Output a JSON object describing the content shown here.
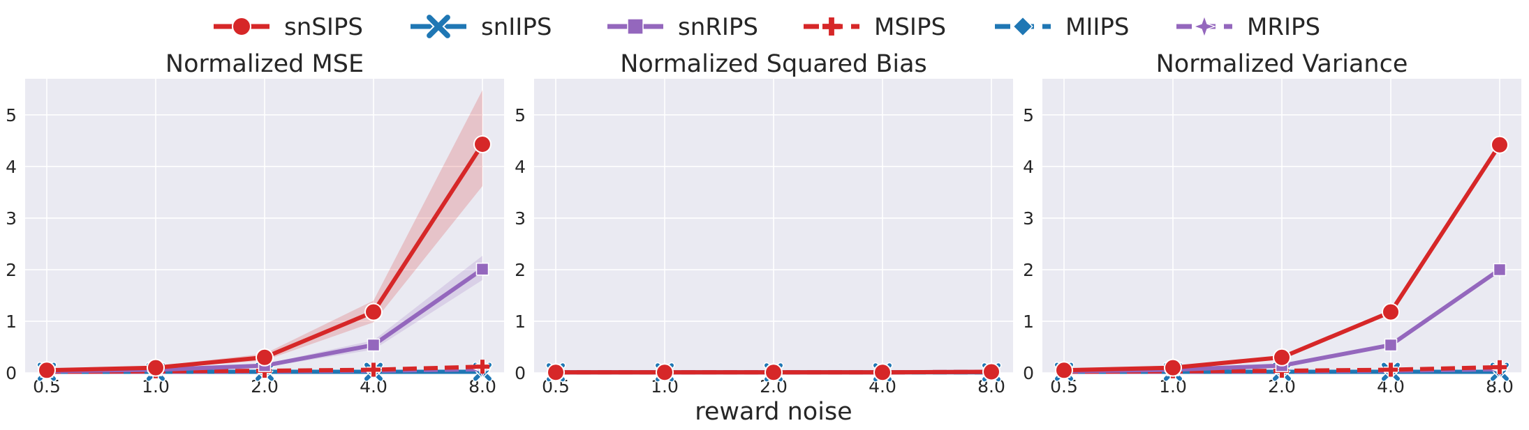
{
  "figure": {
    "xlabel": "reward noise"
  },
  "legend": {
    "placement": "top-center",
    "entries": [
      {
        "name": "snSIPS",
        "color": "#d62728",
        "marker": "circle",
        "dashed": false
      },
      {
        "name": "snIIPS",
        "color": "#1f77b4",
        "marker": "x",
        "dashed": false
      },
      {
        "name": "snRIPS",
        "color": "#9467bd",
        "marker": "square",
        "dashed": false
      },
      {
        "name": "MSIPS",
        "color": "#d62728",
        "marker": "plus",
        "dashed": true
      },
      {
        "name": "MIIPS",
        "color": "#1f77b4",
        "marker": "diamond",
        "dashed": true
      },
      {
        "name": "MRIPS",
        "color": "#9467bd",
        "marker": "star",
        "dashed": true
      }
    ]
  },
  "style": {
    "background": "#eaeaf2",
    "grid_color": "#ffffff",
    "grid": true
  },
  "chart_data": [
    {
      "type": "line",
      "title": "Normalized MSE",
      "categories": [
        "0.5",
        "1.0",
        "2.0",
        "4.0",
        "8.0"
      ],
      "ylim": [
        0,
        5.7
      ],
      "yticks": [
        "0",
        "1",
        "2",
        "3",
        "4",
        "5"
      ],
      "series": [
        {
          "name": "snSIPS",
          "values": [
            0.05,
            0.1,
            0.3,
            1.18,
            4.43
          ],
          "band_low": [
            0.04,
            0.08,
            0.24,
            0.98,
            3.62
          ],
          "band_high": [
            0.06,
            0.13,
            0.37,
            1.4,
            5.48
          ]
        },
        {
          "name": "snIIPS",
          "values": [
            0.02,
            0.02,
            0.02,
            0.02,
            0.02
          ]
        },
        {
          "name": "snRIPS",
          "values": [
            0.03,
            0.06,
            0.14,
            0.54,
            2.01
          ],
          "band_low": [
            0.02,
            0.05,
            0.11,
            0.45,
            1.8
          ],
          "band_high": [
            0.04,
            0.07,
            0.17,
            0.63,
            2.27
          ]
        },
        {
          "name": "MSIPS",
          "values": [
            0.02,
            0.03,
            0.04,
            0.06,
            0.12
          ]
        },
        {
          "name": "MIIPS",
          "values": [
            0.02,
            0.02,
            0.02,
            0.03,
            0.04
          ]
        },
        {
          "name": "MRIPS",
          "values": [
            0.02,
            0.02,
            0.03,
            0.04,
            0.07
          ]
        }
      ]
    },
    {
      "type": "line",
      "title": "Normalized Squared Bias",
      "categories": [
        "0.5",
        "1.0",
        "2.0",
        "4.0",
        "8.0"
      ],
      "ylim": [
        0,
        5.7
      ],
      "yticks": [
        "0",
        "1",
        "2",
        "3",
        "4",
        "5"
      ],
      "series": [
        {
          "name": "snSIPS",
          "values": [
            0.01,
            0.01,
            0.01,
            0.01,
            0.02
          ]
        },
        {
          "name": "snIIPS",
          "values": [
            0.01,
            0.01,
            0.01,
            0.01,
            0.01
          ]
        },
        {
          "name": "snRIPS",
          "values": [
            0.01,
            0.01,
            0.01,
            0.01,
            0.02
          ]
        },
        {
          "name": "MSIPS",
          "values": [
            0.01,
            0.01,
            0.01,
            0.01,
            0.02
          ]
        },
        {
          "name": "MIIPS",
          "values": [
            0.01,
            0.01,
            0.01,
            0.01,
            0.01
          ]
        },
        {
          "name": "MRIPS",
          "values": [
            0.01,
            0.01,
            0.01,
            0.01,
            0.02
          ]
        }
      ]
    },
    {
      "type": "line",
      "title": "Normalized Variance",
      "categories": [
        "0.5",
        "1.0",
        "2.0",
        "4.0",
        "8.0"
      ],
      "ylim": [
        0,
        5.7
      ],
      "yticks": [
        "0",
        "1",
        "2",
        "3",
        "4",
        "5"
      ],
      "series": [
        {
          "name": "snSIPS",
          "values": [
            0.05,
            0.1,
            0.3,
            1.18,
            4.42
          ]
        },
        {
          "name": "snIIPS",
          "values": [
            0.02,
            0.02,
            0.02,
            0.02,
            0.02
          ]
        },
        {
          "name": "snRIPS",
          "values": [
            0.03,
            0.06,
            0.14,
            0.54,
            2.0
          ]
        },
        {
          "name": "MSIPS",
          "values": [
            0.02,
            0.03,
            0.04,
            0.06,
            0.11
          ]
        },
        {
          "name": "MIIPS",
          "values": [
            0.02,
            0.02,
            0.02,
            0.03,
            0.04
          ]
        },
        {
          "name": "MRIPS",
          "values": [
            0.02,
            0.02,
            0.03,
            0.04,
            0.07
          ]
        }
      ]
    }
  ]
}
